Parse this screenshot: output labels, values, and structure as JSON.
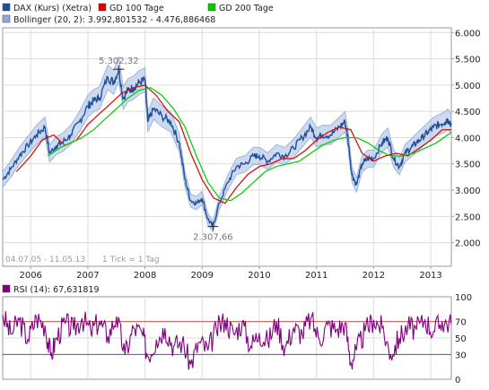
{
  "chart_data": [
    {
      "type": "line",
      "legend": {
        "placement": "top-left",
        "items": [
          {
            "label": "DAX (Kurs) (Xetra)",
            "color": "#1f4e9c"
          },
          {
            "label": "GD 100 Tage",
            "color": "#e00000"
          },
          {
            "label": "GD 200 Tage",
            "color": "#00cc00"
          },
          {
            "label": "Bollinger (20, 2): 3.992,801532 - 4.476,886468",
            "color": "#8eaadb"
          }
        ]
      },
      "x_ticks": [
        "2006",
        "2007",
        "2008",
        "2009",
        "2010",
        "2011",
        "2012",
        "2013"
      ],
      "x_tick_positions": [
        2006,
        2007,
        2008,
        2009,
        2010,
        2011,
        2012,
        2013
      ],
      "xlim": [
        2005.51,
        2013.36
      ],
      "y_ticks": [
        "6.000",
        "5.500",
        "5.000",
        "4.500",
        "4.000",
        "3.500",
        "3.000",
        "2.500",
        "2.000"
      ],
      "y_tick_values": [
        6000,
        5500,
        5000,
        4500,
        4000,
        3500,
        3000,
        2500,
        2000
      ],
      "ylim": [
        1550,
        6090
      ],
      "grid": true,
      "annotations": [
        {
          "text": "5.302,32",
          "x": 2007.54,
          "y": 5302
        },
        {
          "text": "2.307,66",
          "x": 2009.19,
          "y": 2307
        }
      ],
      "footer_left": "04.07.05 - 11.05.13",
      "footer_right": "1 Tick = 1 Tag",
      "series": [
        {
          "name": "DAX (Kurs) (Xetra)",
          "x": [
            2005.51,
            2005.65,
            2005.8,
            2005.95,
            2006.1,
            2006.25,
            2006.33,
            2006.45,
            2006.55,
            2006.7,
            2006.85,
            2007.0,
            2007.1,
            2007.2,
            2007.35,
            2007.45,
            2007.54,
            2007.62,
            2007.7,
            2007.8,
            2007.9,
            2008.0,
            2008.05,
            2008.15,
            2008.3,
            2008.45,
            2008.6,
            2008.7,
            2008.8,
            2008.9,
            2009.0,
            2009.1,
            2009.19,
            2009.3,
            2009.45,
            2009.6,
            2009.75,
            2009.9,
            2010.0,
            2010.15,
            2010.3,
            2010.45,
            2010.6,
            2010.75,
            2010.9,
            2011.0,
            2011.1,
            2011.25,
            2011.4,
            2011.5,
            2011.55,
            2011.62,
            2011.7,
            2011.8,
            2011.9,
            2012.0,
            2012.15,
            2012.25,
            2012.35,
            2012.45,
            2012.55,
            2012.65,
            2012.75,
            2012.85,
            2012.95,
            2013.05,
            2013.15,
            2013.25,
            2013.3,
            2013.36
          ],
          "y": [
            3200,
            3400,
            3650,
            3850,
            4050,
            4200,
            3700,
            3850,
            3900,
            4050,
            4300,
            4600,
            4700,
            4750,
            5150,
            5050,
            5302,
            4750,
            4900,
            4950,
            5050,
            5100,
            4300,
            4550,
            4400,
            4300,
            3900,
            3200,
            2800,
            2750,
            2850,
            2450,
            2307,
            2750,
            3150,
            3450,
            3500,
            3650,
            3650,
            3550,
            3700,
            3650,
            3800,
            4000,
            4200,
            4000,
            4050,
            4050,
            4200,
            4300,
            4000,
            3300,
            3100,
            3500,
            3600,
            3600,
            3900,
            4000,
            3600,
            3450,
            3700,
            3800,
            3900,
            4000,
            4100,
            4200,
            4250,
            4300,
            4350,
            4250
          ]
        },
        {
          "name": "GD 100 Tage",
          "x": [
            2005.75,
            2006.0,
            2006.2,
            2006.4,
            2006.6,
            2006.8,
            2007.0,
            2007.2,
            2007.4,
            2007.6,
            2007.8,
            2008.0,
            2008.2,
            2008.4,
            2008.6,
            2008.8,
            2009.0,
            2009.2,
            2009.4,
            2009.6,
            2009.8,
            2010.0,
            2010.2,
            2010.4,
            2010.6,
            2010.8,
            2011.0,
            2011.2,
            2011.4,
            2011.6,
            2011.8,
            2012.0,
            2012.2,
            2012.4,
            2012.6,
            2012.8,
            2013.0,
            2013.2,
            2013.36
          ],
          "y": [
            3350,
            3650,
            3950,
            4050,
            3850,
            3950,
            4250,
            4450,
            4650,
            4850,
            4950,
            5000,
            4800,
            4500,
            4300,
            3700,
            3200,
            2850,
            2750,
            3050,
            3300,
            3450,
            3500,
            3600,
            3600,
            3750,
            3950,
            4100,
            4200,
            4150,
            3700,
            3550,
            3650,
            3700,
            3650,
            3800,
            3950,
            4150,
            4150
          ]
        },
        {
          "name": "GD 200 Tage",
          "x": [
            2006.3,
            2006.5,
            2006.7,
            2006.9,
            2007.1,
            2007.3,
            2007.5,
            2007.7,
            2007.9,
            2008.1,
            2008.3,
            2008.5,
            2008.7,
            2008.9,
            2009.1,
            2009.3,
            2009.5,
            2009.7,
            2009.9,
            2010.1,
            2010.3,
            2010.5,
            2010.7,
            2010.9,
            2011.1,
            2011.3,
            2011.5,
            2011.7,
            2011.9,
            2012.1,
            2012.3,
            2012.5,
            2012.7,
            2012.9,
            2013.1,
            2013.36
          ],
          "y": [
            3650,
            3800,
            3900,
            4000,
            4150,
            4350,
            4550,
            4750,
            4900,
            4950,
            4800,
            4550,
            4200,
            3650,
            3150,
            2850,
            2800,
            2950,
            3150,
            3350,
            3450,
            3500,
            3550,
            3700,
            3850,
            3950,
            4000,
            4000,
            3900,
            3750,
            3650,
            3650,
            3700,
            3800,
            3900,
            4100
          ]
        }
      ]
    },
    {
      "type": "line",
      "legend": {
        "placement": "top-left",
        "items": [
          {
            "label": "RSI (14): 67,631819",
            "color": "#800080"
          }
        ]
      },
      "y_ticks": [
        "100",
        "70",
        "50",
        "30",
        "0"
      ],
      "y_tick_values": [
        100,
        70,
        50,
        30,
        0
      ],
      "ylim": [
        0,
        100
      ],
      "reference_lines": [
        {
          "y": 70,
          "color": "#e05050"
        },
        {
          "y": 30,
          "color": "#5050d0"
        }
      ],
      "xlim": [
        2005.51,
        2013.36
      ],
      "grid": true,
      "series": [
        {
          "name": "RSI (14): 67,631819",
          "x": [
            2005.51,
            2005.65,
            2005.8,
            2005.95,
            2006.1,
            2006.25,
            2006.35,
            2006.45,
            2006.6,
            2006.75,
            2006.9,
            2007.05,
            2007.2,
            2007.35,
            2007.5,
            2007.65,
            2007.8,
            2007.95,
            2008.05,
            2008.2,
            2008.35,
            2008.5,
            2008.65,
            2008.8,
            2008.95,
            2009.1,
            2009.25,
            2009.4,
            2009.55,
            2009.7,
            2009.85,
            2010.0,
            2010.15,
            2010.3,
            2010.45,
            2010.6,
            2010.75,
            2010.9,
            2011.05,
            2011.2,
            2011.35,
            2011.5,
            2011.6,
            2011.7,
            2011.85,
            2012.0,
            2012.15,
            2012.3,
            2012.45,
            2012.6,
            2012.75,
            2012.9,
            2013.05,
            2013.2,
            2013.36
          ],
          "y": [
            78,
            55,
            72,
            48,
            75,
            65,
            28,
            50,
            68,
            60,
            74,
            58,
            70,
            52,
            76,
            30,
            62,
            55,
            28,
            48,
            62,
            40,
            45,
            18,
            45,
            35,
            60,
            72,
            55,
            68,
            40,
            56,
            45,
            70,
            38,
            62,
            55,
            74,
            48,
            66,
            60,
            68,
            20,
            35,
            58,
            72,
            62,
            30,
            50,
            64,
            60,
            72,
            58,
            70,
            67
          ]
        }
      ]
    }
  ]
}
